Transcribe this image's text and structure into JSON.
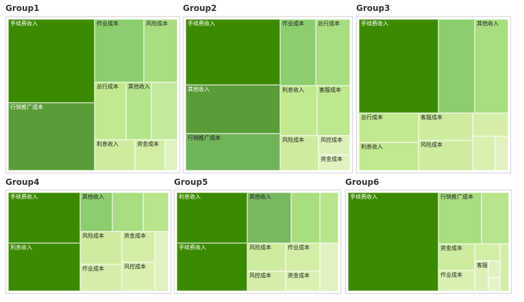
{
  "chart_data": [
    {
      "type": "treemap",
      "title": "Group1",
      "items": [
        {
          "label": "手续费收入",
          "value": 27.0,
          "color": "#3c8a00"
        },
        {
          "label": "行销推广成本",
          "value": 22.0,
          "color": "#5a9c38"
        },
        {
          "label": "作业成本",
          "value": 11.8,
          "color": "#8ccd6e"
        },
        {
          "label": "风险成本",
          "value": 7.9,
          "color": "#a8dd80"
        },
        {
          "label": "总行成本",
          "value": 6.9,
          "color": "#c2e890"
        },
        {
          "label": "其他收入",
          "value": 5.6,
          "color": "#b6e48c"
        },
        {
          "label": "",
          "value": 5.6,
          "color": "#c4e99c"
        },
        {
          "label": "利息收入",
          "value": 4.7,
          "color": "#cdeca0"
        },
        {
          "label": "资金成本",
          "value": 3.5,
          "color": "#d2eea6"
        },
        {
          "label": "",
          "value": 1.4,
          "color": "#e0f2c0"
        }
      ]
    },
    {
      "type": "treemap",
      "title": "Group2",
      "items": [
        {
          "label": "手续费收入",
          "value": 25.0,
          "color": "#3c8a00"
        },
        {
          "label": "其他收入",
          "value": 18.5,
          "color": "#5a9c38"
        },
        {
          "label": "行销推广成本",
          "value": 14.2,
          "color": "#70b458"
        },
        {
          "label": "作业成本",
          "value": 9.5,
          "color": "#8ccd6e"
        },
        {
          "label": "总行成本",
          "value": 9.0,
          "color": "#a8dd80"
        },
        {
          "label": "利息收入",
          "value": 7.4,
          "color": "#c2e890"
        },
        {
          "label": "客服成本",
          "value": 6.6,
          "color": "#bde88e"
        },
        {
          "label": "风险成本",
          "value": 5.4,
          "color": "#cdeca0"
        },
        {
          "label": "风控成本",
          "value": 2.4,
          "color": "#dcf1b8"
        },
        {
          "label": "资金成本",
          "value": 2.0,
          "color": "#e0f2c0"
        }
      ]
    },
    {
      "type": "treemap",
      "title": "Group3",
      "items": [
        {
          "label": "手续费收入",
          "value": 33.0,
          "color": "#3c8a00"
        },
        {
          "label": "",
          "value": 15.0,
          "color": "#8ccd6e"
        },
        {
          "label": "其他收入",
          "value": 14.0,
          "color": "#a8dd80"
        },
        {
          "label": "总行成本",
          "value": 7.8,
          "color": "#c2e890"
        },
        {
          "label": "客服成本",
          "value": 6.6,
          "color": "#cdeca0"
        },
        {
          "label": "利息收入",
          "value": 7.4,
          "color": "#c2e890"
        },
        {
          "label": "风险成本",
          "value": 7.2,
          "color": "#cdeca0"
        },
        {
          "label": "",
          "value": 3.6,
          "color": "#d4eeaa"
        },
        {
          "label": "",
          "value": 3.4,
          "color": "#d8f0b0"
        },
        {
          "label": "",
          "value": 2.0,
          "color": "#e0f2c0"
        }
      ]
    },
    {
      "type": "treemap",
      "title": "Group4",
      "items": [
        {
          "label": "手续费收入",
          "value": 23.0,
          "color": "#3c8a00"
        },
        {
          "label": "利息收入",
          "value": 22.0,
          "color": "#3c8a00"
        },
        {
          "label": "其他收入",
          "value": 8.0,
          "color": "#8ccd6e"
        },
        {
          "label": "",
          "value": 7.6,
          "color": "#a8dd80"
        },
        {
          "label": "",
          "value": 6.2,
          "color": "#b8e48c"
        },
        {
          "label": "风险成本",
          "value": 8.8,
          "color": "#cdeca0"
        },
        {
          "label": "资金成本",
          "value": 6.4,
          "color": "#d2eea6"
        },
        {
          "label": "作业成本",
          "value": 7.0,
          "color": "#d4eeaa"
        },
        {
          "label": "风控成本",
          "value": 6.0,
          "color": "#d8f0b0"
        },
        {
          "label": "",
          "value": 5.0,
          "color": "#e0f2c0"
        }
      ]
    },
    {
      "type": "treemap",
      "title": "Group5",
      "items": [
        {
          "label": "利息收入",
          "value": 24.0,
          "color": "#3c8a00"
        },
        {
          "label": "手续费收入",
          "value": 23.0,
          "color": "#3c8a00"
        },
        {
          "label": "其他收入",
          "value": 15.0,
          "color": "#78b860"
        },
        {
          "label": "",
          "value": 9.8,
          "color": "#a8dd80"
        },
        {
          "label": "",
          "value": 6.2,
          "color": "#b8e48c"
        },
        {
          "label": "风险成本",
          "value": 7.2,
          "color": "#cdeca0"
        },
        {
          "label": "作业成本",
          "value": 6.4,
          "color": "#d2eea6"
        },
        {
          "label": "风控成本",
          "value": 5.2,
          "color": "#d4eeaa"
        },
        {
          "label": "资金成本",
          "value": 4.6,
          "color": "#d8f0b0"
        },
        {
          "label": "",
          "value": 6.0,
          "color": "#e0f2c0"
        }
      ]
    },
    {
      "type": "treemap",
      "title": "Group6",
      "items": [
        {
          "label": "手续费收入",
          "value": 56.0,
          "color": "#3c8a00"
        },
        {
          "label": "行销推广成本",
          "value": 14.0,
          "color": "#a8dd80"
        },
        {
          "label": "",
          "value": 8.8,
          "color": "#b8e48c"
        },
        {
          "label": "资金成本",
          "value": 6.2,
          "color": "#cdeca0"
        },
        {
          "label": "",
          "value": 2.8,
          "color": "#d2eea6"
        },
        {
          "label": "",
          "value": 2.6,
          "color": "#d4eeaa"
        },
        {
          "label": "作业成本",
          "value": 4.8,
          "color": "#d8f0b0"
        },
        {
          "label": "客服成本",
          "value": 2.6,
          "color": "#dcf1b8"
        },
        {
          "label": "",
          "value": 1.2,
          "color": "#e0f2c0"
        },
        {
          "label": "",
          "value": 1.0,
          "color": "#e4f4c8"
        }
      ]
    }
  ]
}
